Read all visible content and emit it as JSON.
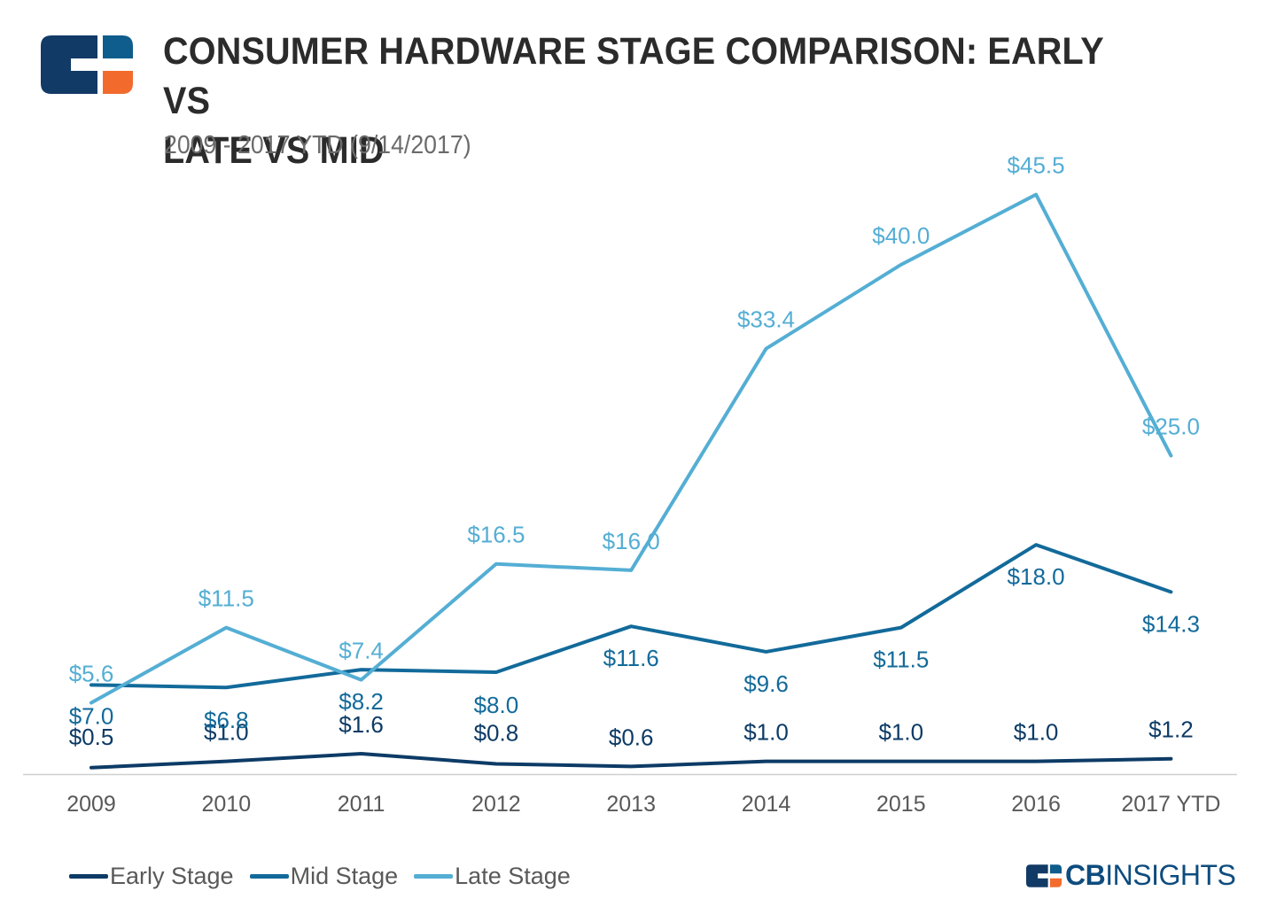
{
  "header": {
    "title_line1": "CONSUMER HARDWARE STAGE COMPARISON: EARLY VS",
    "title_line2": "LATE VS MID",
    "subtitle": "2009 - 2017 YTD (9/14/2017)"
  },
  "brand": {
    "name_bold": "CB",
    "name_rest": "INSIGHTS",
    "colors": {
      "navy": "#123a66",
      "blue": "#0e5d8c",
      "orange": "#f26b2d"
    }
  },
  "chart_data": {
    "type": "line",
    "title": "CONSUMER HARDWARE STAGE COMPARISON: EARLY VS LATE VS MID",
    "subtitle": "2009 - 2017 YTD (9/14/2017)",
    "xlabel": "",
    "ylabel": "",
    "ylim": [
      0,
      50
    ],
    "grid": false,
    "legend_position": "bottom-left",
    "categories": [
      "2009",
      "2010",
      "2011",
      "2012",
      "2013",
      "2014",
      "2015",
      "2016",
      "2017 YTD"
    ],
    "series": [
      {
        "name": "Early Stage",
        "color": "#0d3b66",
        "values": [
          0.5,
          1.0,
          1.6,
          0.8,
          0.6,
          1.0,
          1.0,
          1.0,
          1.2
        ],
        "labels": [
          "$0.5",
          "$1.0",
          "$1.6",
          "$0.8",
          "$0.6",
          "$1.0",
          "$1.0",
          "$1.0",
          "$1.2"
        ]
      },
      {
        "name": "Mid Stage",
        "color": "#126a9a",
        "values": [
          7.0,
          6.8,
          8.2,
          8.0,
          11.6,
          9.6,
          11.5,
          18.0,
          14.3
        ],
        "labels": [
          "$7.0",
          "$6.8",
          "$8.2",
          "$8.0",
          "$11.6",
          "$9.6",
          "$11.5",
          "$18.0",
          "$14.3"
        ]
      },
      {
        "name": "Late Stage",
        "color": "#54aed4",
        "values": [
          5.6,
          11.5,
          7.4,
          16.5,
          16.0,
          33.4,
          40.0,
          45.5,
          25.0
        ],
        "labels": [
          "$5.6",
          "$11.5",
          "$7.4",
          "$16.5",
          "$16.0",
          "$33.4",
          "$40.0",
          "$45.5",
          "$25.0"
        ]
      }
    ]
  }
}
